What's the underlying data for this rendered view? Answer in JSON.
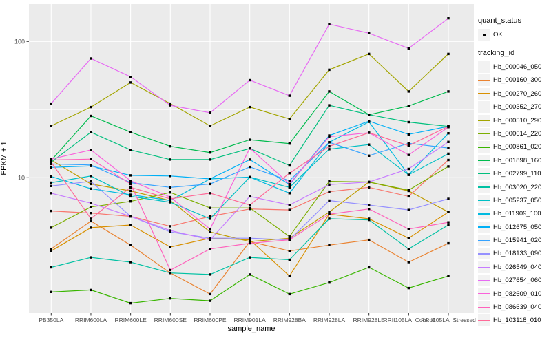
{
  "chart_data": {
    "type": "line",
    "title": "",
    "xlabel": "sample_name",
    "ylabel": "FPKM + 1",
    "y_scale": "log10",
    "ylim": [
      1,
      180
    ],
    "grid": true,
    "panel_bg": "#EBEBEB",
    "grid_color": "#FFFFFF",
    "point_color": "#000000",
    "y_ticks": [
      {
        "label": "10",
        "value": 10
      },
      {
        "label": "100",
        "value": 100
      }
    ],
    "y_minor_values": [
      3.162,
      31.62
    ],
    "categories": [
      "PB350LA",
      "RRIM600LA",
      "RRIM600LE",
      "RRIM600SE",
      "RRIM600PE",
      "RRIM901LA",
      "RRIM928BA",
      "RRIM928LA",
      "RRIM928LE",
      "RRII105LA_Control",
      "RRII105LA_Stressed"
    ],
    "series": [
      {
        "name": "Hb_000046_050",
        "color": "#F8766D",
        "values": [
          5.7,
          5.5,
          5.2,
          4.4,
          5.2,
          5.9,
          5.8,
          7.9,
          8.5,
          7.3,
          13.5
        ]
      },
      {
        "name": "Hb_000160_300",
        "color": "#EA8331",
        "values": [
          3.0,
          4.8,
          3.2,
          2.0,
          1.4,
          3.4,
          2.9,
          3.2,
          3.5,
          2.4,
          3.3
        ]
      },
      {
        "name": "Hb_000270_260",
        "color": "#D89000",
        "values": [
          2.9,
          4.3,
          4.5,
          3.1,
          3.6,
          3.5,
          1.9,
          5.4,
          5.0,
          3.6,
          5.6
        ]
      },
      {
        "name": "Hb_000352_270",
        "color": "#C09B00",
        "values": [
          13.5,
          9.0,
          8.0,
          6.8,
          4.0,
          3.4,
          3.6,
          5.6,
          9.3,
          8.0,
          5.6
        ]
      },
      {
        "name": "Hb_000510_290",
        "color": "#A3A500",
        "values": [
          24,
          33,
          50,
          35,
          24,
          33,
          27,
          62,
          81,
          43,
          81
        ]
      },
      {
        "name": "Hb_000614_220",
        "color": "#7CAE00",
        "values": [
          4.3,
          6.1,
          6.7,
          7.8,
          6.0,
          6.0,
          3.7,
          9.4,
          9.3,
          8.1,
          12.1
        ]
      },
      {
        "name": "Hb_000861_020",
        "color": "#39B600",
        "values": [
          1.45,
          1.5,
          1.2,
          1.3,
          1.25,
          1.95,
          1.4,
          1.7,
          2.2,
          1.55,
          1.9
        ]
      },
      {
        "name": "Hb_001898_160",
        "color": "#00BB4E",
        "values": [
          13.4,
          28.4,
          21.6,
          17.0,
          15.3,
          19.0,
          17.8,
          43,
          29,
          33.6,
          43
        ]
      },
      {
        "name": "Hb_002799_110",
        "color": "#00BF7D",
        "values": [
          13.0,
          21.6,
          16.0,
          13.6,
          13.6,
          16.4,
          12.3,
          34,
          29,
          25.6,
          23.8
        ]
      },
      {
        "name": "Hb_003020_220",
        "color": "#00C1A3",
        "values": [
          2.2,
          2.6,
          2.4,
          2.0,
          1.95,
          2.6,
          2.5,
          5.0,
          4.9,
          3.0,
          4.5
        ]
      },
      {
        "name": "Hb_005237_050",
        "color": "#00BFC4",
        "values": [
          9.2,
          10.3,
          7.3,
          6.6,
          5.0,
          10.1,
          8.5,
          16.2,
          17.5,
          10.5,
          15.0
        ]
      },
      {
        "name": "Hb_011909_100",
        "color": "#00BAE0",
        "values": [
          10.2,
          8.3,
          7.5,
          6.8,
          9.8,
          10.1,
          7.7,
          18.2,
          25.7,
          10.5,
          21.2
        ]
      },
      {
        "name": "Hb_012675_050",
        "color": "#00B0F6",
        "values": [
          11.9,
          12.2,
          10.4,
          10.3,
          9.8,
          13.6,
          8.9,
          20.4,
          26.0,
          20.8,
          23.8
        ]
      },
      {
        "name": "Hb_015941_020",
        "color": "#35A2FF",
        "values": [
          12.6,
          12.4,
          9.2,
          8.5,
          9.0,
          12.0,
          9.5,
          18.2,
          14.5,
          17.9,
          16.5
        ]
      },
      {
        "name": "Hb_018133_090",
        "color": "#9590FF",
        "values": [
          8.7,
          9.4,
          5.2,
          4.0,
          3.6,
          3.6,
          3.5,
          6.8,
          6.3,
          5.8,
          7.0
        ]
      },
      {
        "name": "Hb_026549_040",
        "color": "#C77CFF",
        "values": [
          7.7,
          6.5,
          5.2,
          4.1,
          3.5,
          7.3,
          6.3,
          8.9,
          9.3,
          11.6,
          18.3
        ]
      },
      {
        "name": "Hb_027654_060",
        "color": "#E76BF3",
        "values": [
          35,
          75,
          55,
          34,
          30,
          52,
          40,
          134,
          115,
          89,
          148
        ]
      },
      {
        "name": "Hb_082609_010",
        "color": "#FA62DB",
        "values": [
          13.7,
          16.0,
          9.5,
          7.2,
          4.2,
          16.5,
          9.0,
          20.0,
          21.4,
          14.7,
          23.5
        ]
      },
      {
        "name": "Hb_086639_040",
        "color": "#FF62BC",
        "values": [
          13.5,
          13.7,
          9.0,
          2.1,
          3.0,
          3.3,
          3.5,
          5.4,
          5.9,
          4.2,
          4.7
        ]
      },
      {
        "name": "Hb_103118_010",
        "color": "#FF6A98",
        "values": [
          13.0,
          5.0,
          8.5,
          7.0,
          7.7,
          6.3,
          10.8,
          17.0,
          21.4,
          17.2,
          23.8
        ]
      }
    ]
  },
  "legend": {
    "quant_status_title": "quant_status",
    "quant_status_items": [
      {
        "label": "OK",
        "marker_color": "#000000"
      }
    ],
    "tracking_id_title": "tracking_id",
    "key_bg": "#F2F2F2"
  }
}
